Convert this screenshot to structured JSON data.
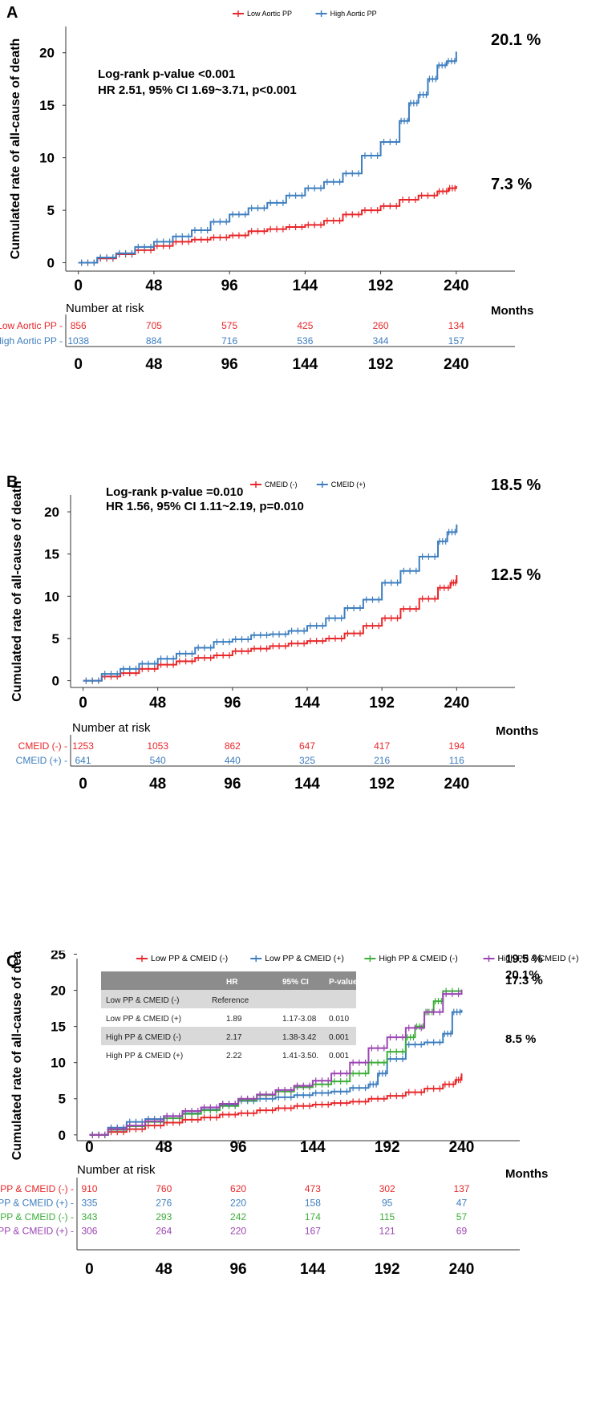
{
  "chart_data": [
    {
      "type": "line",
      "panel": "A",
      "title": "",
      "ylabel": "Cumulated rate of all-cause of death",
      "xlabel": "",
      "x_ticks": [
        0,
        48,
        96,
        144,
        192,
        240
      ],
      "y_ticks": [
        0,
        5,
        10,
        15,
        20
      ],
      "xlim": [
        -8,
        262
      ],
      "ylim": [
        -0.8,
        22.5
      ],
      "legend": "top",
      "annotations": [
        "Log-rank p-value <0.001",
        "HR 2.51, 95% CI 1.69~3.71, p<0.001"
      ],
      "series": [
        {
          "name": "Low Aortic PP",
          "color": "#e8272a",
          "end_label": "7.3 %",
          "x": [
            0,
            12,
            24,
            36,
            48,
            60,
            72,
            84,
            96,
            108,
            120,
            132,
            144,
            156,
            168,
            180,
            192,
            204,
            216,
            228,
            235,
            240
          ],
          "y": [
            0,
            0.4,
            0.8,
            1.2,
            1.6,
            2.0,
            2.2,
            2.4,
            2.6,
            3.0,
            3.2,
            3.4,
            3.6,
            4.0,
            4.6,
            5.0,
            5.4,
            6.0,
            6.4,
            6.8,
            7.1,
            7.3
          ]
        },
        {
          "name": "High Aortic PP",
          "color": "#3d7ebf",
          "end_label": "20.1 %",
          "x": [
            0,
            12,
            24,
            36,
            48,
            60,
            72,
            84,
            96,
            108,
            120,
            132,
            144,
            156,
            168,
            180,
            192,
            204,
            210,
            216,
            222,
            228,
            234,
            240
          ],
          "y": [
            0,
            0.5,
            0.9,
            1.5,
            2.0,
            2.5,
            3.1,
            3.9,
            4.6,
            5.2,
            5.7,
            6.4,
            7.1,
            7.7,
            8.5,
            10.2,
            11.5,
            13.5,
            15.2,
            16.0,
            17.5,
            18.8,
            19.2,
            20.1
          ]
        }
      ],
      "risk_table": {
        "title": "Number at risk",
        "x_unit_label": "Months",
        "rows": [
          {
            "label": "Low Aortic PP",
            "color": "#e8272a",
            "values": [
              "856",
              "705",
              "575",
              "425",
              "260",
              "134"
            ]
          },
          {
            "label": "High Aortic PP",
            "color": "#3d7ebf",
            "values": [
              "1038",
              "884",
              "716",
              "536",
              "344",
              "157"
            ]
          }
        ],
        "x_ticks": [
          0,
          48,
          96,
          144,
          192,
          240
        ]
      }
    },
    {
      "type": "line",
      "panel": "B",
      "title": "",
      "ylabel": "Cumulated rate of all-cause of death",
      "xlabel": "",
      "x_ticks": [
        0,
        48,
        96,
        144,
        192,
        240
      ],
      "y_ticks": [
        0,
        5,
        10,
        15,
        20
      ],
      "xlim": [
        -8,
        262
      ],
      "ylim": [
        -0.8,
        22.0
      ],
      "legend": "top",
      "annotations": [
        "Log-rank p-value =0.010",
        "HR 1.56, 95% CI 1.11~2.19, p=0.010"
      ],
      "series": [
        {
          "name": "CMEID (-)",
          "color": "#e8272a",
          "end_label": "12.5 %",
          "x": [
            0,
            12,
            24,
            36,
            48,
            60,
            72,
            84,
            96,
            108,
            120,
            132,
            144,
            156,
            168,
            180,
            192,
            204,
            216,
            228,
            236,
            240
          ],
          "y": [
            0,
            0.5,
            0.9,
            1.4,
            1.9,
            2.3,
            2.7,
            3.0,
            3.5,
            3.8,
            4.1,
            4.4,
            4.7,
            5.0,
            5.6,
            6.5,
            7.4,
            8.5,
            9.7,
            11.0,
            11.6,
            12.5
          ]
        },
        {
          "name": "CMEID (+)",
          "color": "#3d7ebf",
          "end_label": "18.5 %",
          "x": [
            0,
            12,
            24,
            36,
            48,
            60,
            72,
            84,
            96,
            108,
            120,
            132,
            144,
            156,
            168,
            180,
            192,
            204,
            216,
            228,
            234,
            240
          ],
          "y": [
            0,
            0.8,
            1.4,
            2.0,
            2.6,
            3.2,
            3.9,
            4.6,
            4.9,
            5.4,
            5.5,
            5.9,
            6.5,
            7.4,
            8.6,
            9.6,
            11.6,
            13.0,
            14.7,
            16.5,
            17.6,
            18.5
          ]
        }
      ],
      "risk_table": {
        "title": "Number at risk",
        "x_unit_label": "Months",
        "rows": [
          {
            "label": "CMEID (-)",
            "color": "#e8272a",
            "values": [
              "1253",
              "1053",
              "862",
              "647",
              "417",
              "194"
            ]
          },
          {
            "label": "CMEID (+)",
            "color": "#3d7ebf",
            "values": [
              "641",
              "540",
              "440",
              "325",
              "216",
              "116"
            ]
          }
        ],
        "x_ticks": [
          0,
          48,
          96,
          144,
          192,
          240
        ]
      }
    },
    {
      "type": "line",
      "panel": "C",
      "title": "",
      "ylabel": "Cumulated rate of all-cause of death",
      "xlabel": "",
      "x_ticks": [
        0,
        48,
        96,
        144,
        192,
        240
      ],
      "y_ticks": [
        0,
        5,
        10,
        15,
        20,
        25
      ],
      "xlim": [
        -8,
        262
      ],
      "ylim": [
        -0.8,
        26.5
      ],
      "legend": "top",
      "series": [
        {
          "name": "Low PP & CMEID (-)",
          "color": "#e8272a",
          "end_label": "8.5 %",
          "x": [
            0,
            12,
            24,
            36,
            48,
            60,
            72,
            84,
            96,
            108,
            120,
            132,
            144,
            156,
            168,
            180,
            192,
            204,
            216,
            228,
            236,
            240
          ],
          "y": [
            0,
            0.4,
            0.8,
            1.3,
            1.7,
            2.1,
            2.4,
            2.8,
            3.0,
            3.4,
            3.7,
            4.0,
            4.2,
            4.4,
            4.6,
            5.0,
            5.4,
            5.9,
            6.4,
            7.0,
            7.6,
            8.5
          ]
        },
        {
          "name": "Low PP & CMEID (+)",
          "color": "#3d7ebf",
          "end_label": "17.3 %",
          "x": [
            0,
            12,
            24,
            36,
            48,
            60,
            72,
            84,
            96,
            108,
            120,
            132,
            144,
            156,
            168,
            180,
            186,
            192,
            204,
            216,
            228,
            234,
            240
          ],
          "y": [
            0,
            1.0,
            1.8,
            2.2,
            2.6,
            3.0,
            3.5,
            4.2,
            4.7,
            5.0,
            5.2,
            5.5,
            5.8,
            6.0,
            6.5,
            7.0,
            8.5,
            10.5,
            12.5,
            12.8,
            14.0,
            17.0,
            17.3
          ]
        },
        {
          "name": "High PP & CMEID (-)",
          "color": "#3dae3a",
          "end_label": "19.5 %",
          "x": [
            0,
            12,
            24,
            36,
            48,
            60,
            72,
            84,
            96,
            108,
            120,
            132,
            144,
            156,
            168,
            180,
            192,
            204,
            210,
            216,
            222,
            228,
            240
          ],
          "y": [
            0,
            0.7,
            1.2,
            1.8,
            2.3,
            2.9,
            3.4,
            4.0,
            4.8,
            5.5,
            6.0,
            6.6,
            7.0,
            7.4,
            8.5,
            10.0,
            11.5,
            13.5,
            15.0,
            17.0,
            18.5,
            19.9,
            19.5
          ]
        },
        {
          "name": "High PP & CMEID (+)",
          "color": "#9b45b2",
          "end_label": "20.1%",
          "x": [
            0,
            12,
            24,
            36,
            48,
            60,
            72,
            84,
            96,
            108,
            120,
            132,
            144,
            156,
            168,
            180,
            192,
            204,
            216,
            228,
            240
          ],
          "y": [
            0,
            0.8,
            1.3,
            1.9,
            2.6,
            3.3,
            3.8,
            4.3,
            5.0,
            5.6,
            6.2,
            6.8,
            7.5,
            8.5,
            10.0,
            12.0,
            13.5,
            14.8,
            17.0,
            19.5,
            20.1
          ]
        }
      ],
      "hr_table": {
        "headers": [
          "",
          "HR",
          "95% CI",
          "P-value"
        ],
        "rows": [
          [
            "Low PP & CMEID (-)",
            "Reference",
            "",
            ""
          ],
          [
            "Low PP & CMEID (+)",
            "1.89",
            "1.17-3.08",
            "0.010"
          ],
          [
            "High PP & CMEID (-)",
            "2.17",
            "1.38-3.42",
            "0.001"
          ],
          [
            "High PP & CMEID (+)",
            "2.22",
            "1.41-3.50.",
            "0.001"
          ]
        ]
      },
      "risk_table": {
        "title": "Number at risk",
        "x_unit_label": "Months",
        "rows": [
          {
            "label": "ow PP & CMEID (-)",
            "color": "#e8272a",
            "values": [
              "910",
              "760",
              "620",
              "473",
              "302",
              "137"
            ]
          },
          {
            "label": "ow PP & CMEID (+)",
            "color": "#3d7ebf",
            "values": [
              "335",
              "276",
              "220",
              "158",
              "95",
              "47"
            ]
          },
          {
            "label": "gh PP & CMEID (-)",
            "color": "#3dae3a",
            "values": [
              "343",
              "293",
              "242",
              "174",
              "115",
              "57"
            ]
          },
          {
            "label": "gh PP & CMEID (+)",
            "color": "#9b45b2",
            "values": [
              "306",
              "264",
              "220",
              "167",
              "121",
              "69"
            ]
          }
        ],
        "x_ticks": [
          0,
          48,
          96,
          144,
          192,
          240
        ]
      }
    }
  ],
  "panels": {
    "A": {
      "letter": "A"
    },
    "B": {
      "letter": "B"
    },
    "C": {
      "letter": "C"
    }
  }
}
